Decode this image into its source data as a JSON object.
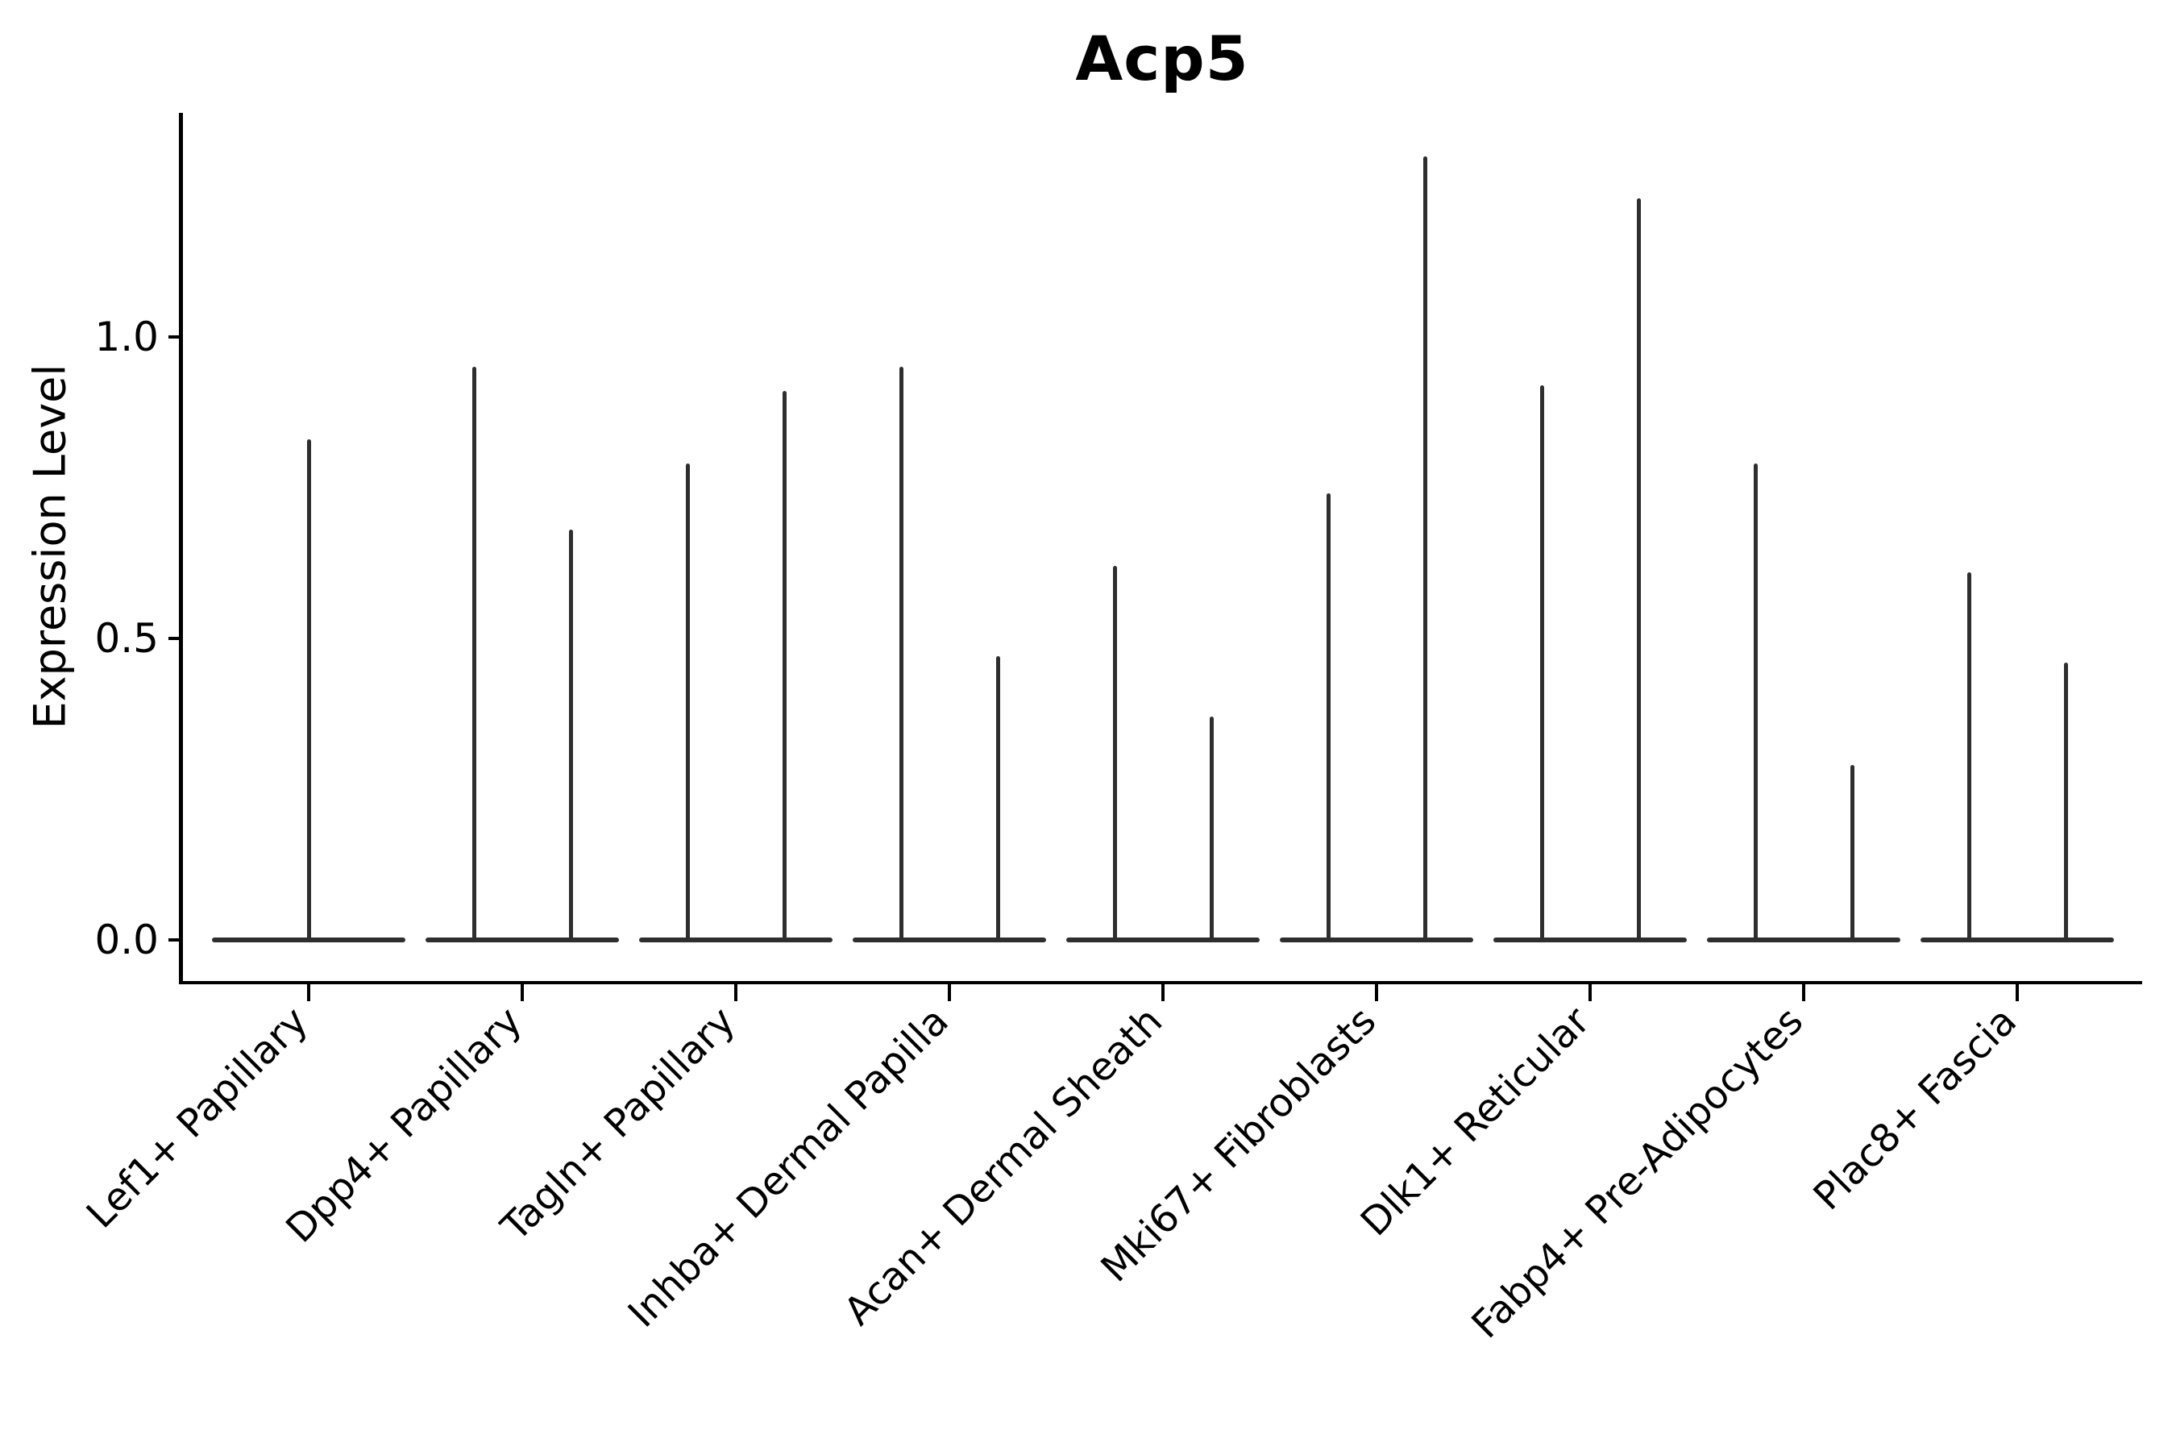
{
  "title": "Acp5",
  "y_axis": {
    "label": "Expression Level",
    "tick_labels": [
      "0.0",
      "0.5",
      "1.0"
    ],
    "tick_values": [
      0.0,
      0.5,
      1.0
    ]
  },
  "colors": {
    "violin_stroke": "#2e2e2e",
    "axis": "#000000",
    "text": "#000000",
    "background": "#ffffff"
  },
  "chart_data": {
    "type": "violin",
    "title": "Acp5",
    "xlabel": "",
    "ylabel": "Expression Level",
    "ylim": [
      -0.07,
      1.37
    ],
    "yticks": [
      0.0,
      0.5,
      1.0
    ],
    "grid": false,
    "legend": null,
    "categories": [
      "Lef1+ Papillary",
      "Dpp4+ Papillary",
      "Tagln+ Papillary",
      "Inhba+ Dermal Papilla",
      "Acan+ Dermal Sheath",
      "Mki67+ Fibroblasts",
      "Dlk1+ Reticular",
      "Fabp4+ Pre-Adipocytes",
      "Plac8+ Fascia"
    ],
    "violins": [
      {
        "category": "Lef1+ Papillary",
        "groups": 1,
        "spike_maxima": [
          0.83
        ]
      },
      {
        "category": "Dpp4+ Papillary",
        "groups": 2,
        "spike_maxima": [
          0.95,
          0.68
        ]
      },
      {
        "category": "Tagln+ Papillary",
        "groups": 2,
        "spike_maxima": [
          0.79,
          0.91
        ]
      },
      {
        "category": "Inhba+ Dermal Papilla",
        "groups": 2,
        "spike_maxima": [
          0.95,
          0.47
        ]
      },
      {
        "category": "Acan+ Dermal Sheath",
        "groups": 2,
        "spike_maxima": [
          0.62,
          0.37
        ]
      },
      {
        "category": "Mki67+ Fibroblasts",
        "groups": 2,
        "spike_maxima": [
          0.74,
          1.3
        ]
      },
      {
        "category": "Dlk1+ Reticular",
        "groups": 2,
        "spike_maxima": [
          0.92,
          1.23
        ]
      },
      {
        "category": "Fabp4+ Pre-Adipocytes",
        "groups": 2,
        "spike_maxima": [
          0.79,
          0.29
        ]
      },
      {
        "category": "Plac8+ Fascia",
        "groups": 2,
        "spike_maxima": [
          0.61,
          0.46
        ]
      }
    ]
  }
}
